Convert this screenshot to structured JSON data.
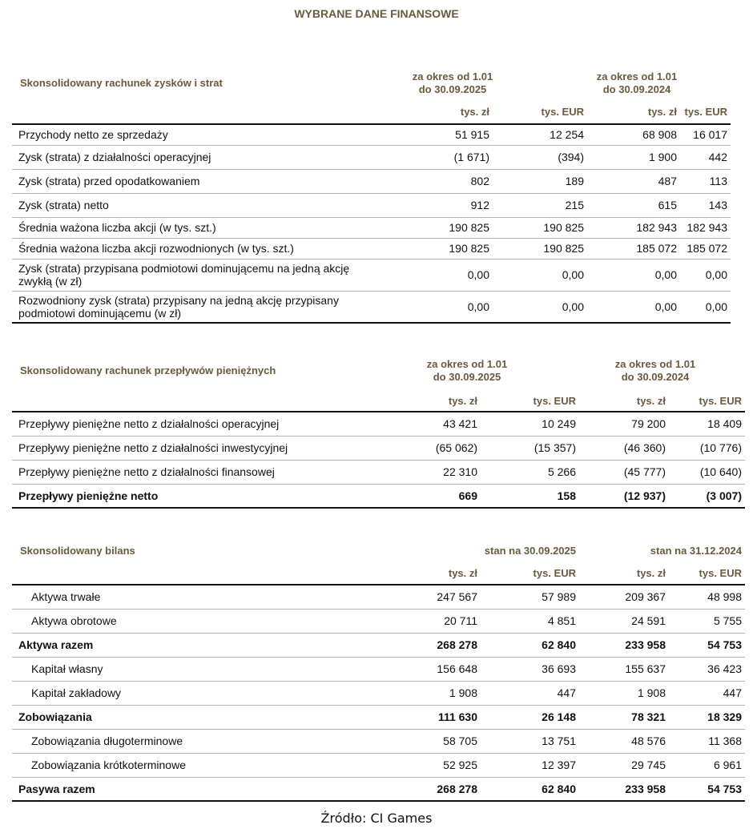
{
  "title": "WYBRANE DANE FINANSOWE",
  "sections": [
    {
      "title": "Skonsolidowany rachunek zysków i strat",
      "period1": "za okres od 1.01\ndo 30.09.2025",
      "period2": "za okres od 1.01\ndo 30.09.2024",
      "units": [
        "tys. zł",
        "tys. EUR",
        "tys. zł",
        "tys. EUR"
      ],
      "rows": [
        {
          "label": "Przychody netto ze sprzedaży",
          "values": [
            "51 915",
            "12 254",
            "68 908",
            "16 017"
          ]
        },
        {
          "label": "Zysk (strata) z działalności operacyjnej",
          "values": [
            "(1 671)",
            "(394)",
            "1 900",
            "442"
          ]
        },
        {
          "label": "Zysk (strata) przed opodatkowaniem",
          "values": [
            "802",
            "189",
            "487",
            "113"
          ]
        },
        {
          "label": "Zysk (strata) netto",
          "values": [
            "912",
            "215",
            "615",
            "143"
          ]
        },
        {
          "label": "Średnia ważona liczba akcji (w tys. szt.)",
          "values": [
            "190 825",
            "190 825",
            "182 943",
            "182 943"
          ]
        },
        {
          "label": "Średnia ważona liczba akcji rozwodnionych (w tys. szt.)",
          "values": [
            "190 825",
            "190 825",
            "185 072",
            "185 072"
          ]
        },
        {
          "label": "Zysk (strata) przypisana podmiotowi dominującemu na jedną akcję zwykłą (w zł)",
          "values": [
            "0,00",
            "0,00",
            "0,00",
            "0,00"
          ],
          "tall": true
        },
        {
          "label": "Rozwodniony zysk (strata) przypisany na jedną akcję przypisany podmiotowi dominującemu (w zł)",
          "values": [
            "0,00",
            "0,00",
            "0,00",
            "0,00"
          ],
          "tall": true
        }
      ]
    },
    {
      "title": "Skonsolidowany rachunek przepływów pieniężnych",
      "period1": "za okres od 1.01\ndo 30.09.2025",
      "period2": "za okres od 1.01\ndo 30.09.2024",
      "units": [
        "tys. zł",
        "tys. EUR",
        "tys. zł",
        "tys. EUR"
      ],
      "rows": [
        {
          "label": "Przepływy pieniężne netto z działalności operacyjnej",
          "values": [
            "43 421",
            "10 249",
            "79 200",
            "18 409"
          ]
        },
        {
          "label": "Przepływy pieniężne netto z działalności inwestycyjnej",
          "values": [
            "(65 062)",
            "(15 357)",
            "(46 360)",
            "(10 776)"
          ]
        },
        {
          "label": "Przepływy pieniężne netto z działalności finansowej",
          "values": [
            "22 310",
            "5 266",
            "(45 777)",
            "(10 640)"
          ]
        },
        {
          "label": "Przepływy pieniężne netto",
          "values": [
            "669",
            "158",
            "(12 937)",
            "(3 007)"
          ],
          "bold": true
        }
      ]
    },
    {
      "title": "Skonsolidowany bilans",
      "period1": "stan na 30.09.2025",
      "period2": "stan na 31.12.2024",
      "units": [
        "tys. zł",
        "tys. EUR",
        "tys. zł",
        "tys. EUR"
      ],
      "rows": [
        {
          "label": "Aktywa trwałe",
          "values": [
            "247 567",
            "57 989",
            "209 367",
            "48 998"
          ],
          "indent": true
        },
        {
          "label": "Aktywa obrotowe",
          "values": [
            "20 711",
            "4 851",
            "24 591",
            "5 755"
          ],
          "indent": true
        },
        {
          "label": "Aktywa razem",
          "values": [
            "268 278",
            "62 840",
            "233 958",
            "54 753"
          ],
          "bold": true
        },
        {
          "label": "Kapitał własny",
          "values": [
            "156 648",
            "36 693",
            "155 637",
            "36 423"
          ],
          "indent": true
        },
        {
          "label": "Kapitał zakładowy",
          "values": [
            "1 908",
            "447",
            "1 908",
            "447"
          ],
          "indent": true
        },
        {
          "label": "Zobowiązania",
          "values": [
            "111 630",
            "26 148",
            "78 321",
            "18 329"
          ],
          "bold": true
        },
        {
          "label": "Zobowiązania długoterminowe",
          "values": [
            "58 705",
            "13 751",
            "48 576",
            "11 368"
          ],
          "indent": true
        },
        {
          "label": "Zobowiązania krótkoterminowe",
          "values": [
            "52 925",
            "12 397",
            "29 745",
            "6 961"
          ],
          "indent": true
        },
        {
          "label": "Pasywa razem",
          "values": [
            "268 278",
            "62 840",
            "233 958",
            "54 753"
          ],
          "bold": true
        }
      ]
    }
  ],
  "source": "Źródło: CI Games"
}
